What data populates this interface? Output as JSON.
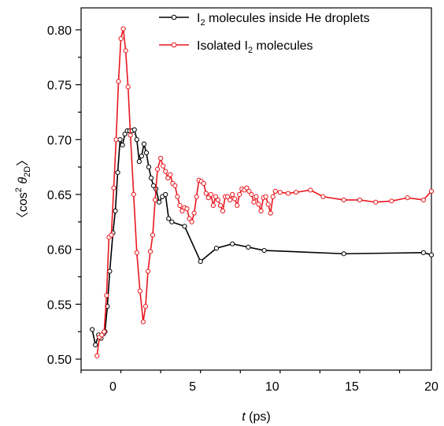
{
  "chart_data": {
    "type": "line",
    "xlabel_italic": "t",
    "xlabel_unit": " (ps)",
    "ylabel_parts": [
      "〈cos",
      "2",
      " ",
      "θ",
      "2D",
      "〉"
    ],
    "xlim": [
      -2,
      20
    ],
    "ylim": [
      0.49,
      0.82
    ],
    "xticks": [
      0,
      5,
      10,
      15,
      20
    ],
    "yticks": [
      0.5,
      0.55,
      0.6,
      0.65,
      0.7,
      0.75,
      0.8
    ],
    "xtick_labels": [
      "0",
      "5",
      "10",
      "15",
      "20"
    ],
    "ytick_labels": [
      "0.50",
      "0.55",
      "0.60",
      "0.65",
      "0.70",
      "0.75",
      "0.80"
    ],
    "grid": false,
    "legend_position": "top-right",
    "series": [
      {
        "name_parts": [
          "I",
          "2",
          " molecules inside He droplets"
        ],
        "color": "#000000",
        "x": [
          -1.3,
          -1.1,
          -0.9,
          -0.75,
          -0.6,
          -0.5,
          -0.35,
          -0.2,
          0.0,
          0.15,
          0.3,
          0.45,
          0.6,
          0.75,
          0.9,
          1.05,
          1.2,
          1.35,
          1.5,
          1.65,
          1.8,
          1.95,
          2.1,
          2.25,
          2.4,
          2.55,
          2.7,
          2.9,
          3.1,
          3.3,
          3.5,
          3.7,
          4.5,
          5.5,
          6.5,
          7.5,
          8.5,
          9.5,
          14.5,
          19.5,
          20.0
        ],
        "y": [
          0.527,
          0.513,
          0.522,
          0.519,
          0.523,
          0.525,
          0.548,
          0.58,
          0.615,
          0.635,
          0.67,
          0.7,
          0.695,
          0.705,
          0.708,
          0.708,
          0.708,
          0.709,
          0.7,
          0.68,
          0.685,
          0.696,
          0.688,
          0.675,
          0.665,
          0.658,
          0.655,
          0.643,
          0.648,
          0.65,
          0.628,
          0.625,
          0.621,
          0.589,
          0.601,
          0.605,
          0.602,
          0.599,
          0.596,
          0.597,
          0.595
        ]
      },
      {
        "name_parts": [
          "Isolated I",
          "2",
          " molecules"
        ],
        "color": "#e8171e",
        "x": [
          -1.0,
          -0.85,
          -0.7,
          -0.55,
          -0.4,
          -0.25,
          -0.1,
          0.05,
          0.2,
          0.35,
          0.5,
          0.65,
          0.8,
          0.95,
          1.1,
          1.3,
          1.5,
          1.7,
          1.9,
          2.05,
          2.2,
          2.35,
          2.5,
          2.65,
          2.8,
          3.0,
          3.15,
          3.3,
          3.45,
          3.6,
          3.75,
          3.9,
          4.05,
          4.2,
          4.35,
          4.5,
          4.65,
          4.8,
          4.95,
          5.1,
          5.25,
          5.4,
          5.55,
          5.7,
          5.85,
          6.0,
          6.15,
          6.3,
          6.45,
          6.6,
          6.75,
          6.9,
          7.05,
          7.2,
          7.35,
          7.5,
          7.65,
          7.8,
          7.95,
          8.1,
          8.25,
          8.4,
          8.55,
          8.7,
          8.85,
          9.0,
          9.15,
          9.3,
          9.45,
          9.6,
          9.75,
          9.9,
          10.05,
          10.2,
          10.5,
          11.0,
          11.5,
          12.4,
          13.2,
          14.5,
          15.5,
          16.5,
          17.5,
          18.5,
          19.5,
          20.0
        ],
        "y": [
          0.503,
          0.52,
          0.522,
          0.525,
          0.558,
          0.611,
          0.613,
          0.656,
          0.7,
          0.753,
          0.792,
          0.801,
          0.781,
          0.748,
          0.704,
          0.65,
          0.597,
          0.562,
          0.534,
          0.548,
          0.58,
          0.598,
          0.613,
          0.645,
          0.673,
          0.683,
          0.676,
          0.671,
          0.665,
          0.668,
          0.66,
          0.658,
          0.648,
          0.64,
          0.635,
          0.638,
          0.637,
          0.628,
          0.625,
          0.633,
          0.648,
          0.663,
          0.662,
          0.66,
          0.651,
          0.647,
          0.65,
          0.64,
          0.648,
          0.645,
          0.64,
          0.635,
          0.648,
          0.648,
          0.645,
          0.65,
          0.646,
          0.64,
          0.65,
          0.655,
          0.654,
          0.656,
          0.653,
          0.65,
          0.643,
          0.648,
          0.641,
          0.635,
          0.647,
          0.648,
          0.641,
          0.633,
          0.648,
          0.653,
          0.652,
          0.651,
          0.652,
          0.654,
          0.648,
          0.645,
          0.645,
          0.643,
          0.644,
          0.647,
          0.645,
          0.653
        ]
      }
    ]
  }
}
